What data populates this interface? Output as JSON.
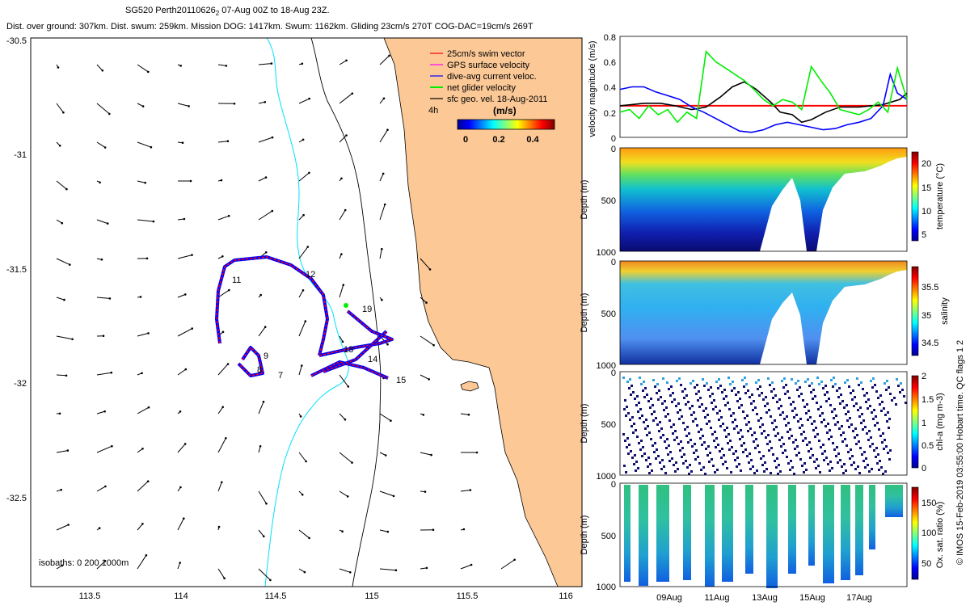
{
  "header": {
    "title_main": "SG520 Perth20110626",
    "title_sub": "2",
    "title_rest": " 07-Aug 00Z to 18-Aug 23Z.",
    "stats": "Dist. over ground: 307km. Dist. swum: 259km. Mission DOG: 1417km. Swum: 1162km. Gliding 23cm/s 270T COG-DAC=19cm/s 269T"
  },
  "colors": {
    "land": "#fbc896",
    "isobath_shallow": "#00e0ff",
    "isobath_deep": "#000000",
    "swim_vector": "#ff0000",
    "gps_velocity": "#ff00ff",
    "dac": "#0000ff",
    "net_velocity": "#00ee00",
    "sfc_geo": "#000000"
  },
  "map": {
    "xticks": [
      "113.5",
      "114",
      "114.5",
      "115",
      "115.5",
      "116"
    ],
    "yticks": [
      "-30.5",
      "-31",
      "-31.5",
      "-32",
      "-32.5"
    ],
    "legend": [
      {
        "label": "25cm/s swim vector",
        "color": "#ff0000"
      },
      {
        "label": "GPS surface velocity",
        "color": "#ff00ff"
      },
      {
        "label": "dive-avg current veloc.",
        "color": "#0000ff"
      },
      {
        "label": "net glider velocity",
        "color": "#00ee00"
      },
      {
        "label": "sfc geo. vel. 18-Aug-2011",
        "color": "#000000"
      }
    ],
    "legend_extra": "4h",
    "colorbar_title": "(m/s)",
    "colorbar_ticks": [
      "0",
      "0.2",
      "0.4"
    ],
    "track_labels": [
      "11",
      "12",
      "19",
      "13",
      "14",
      "15",
      "9",
      "8",
      "7"
    ],
    "isobath_note": "isobaths: 0   200  1000m"
  },
  "chart_data": [
    {
      "type": "line",
      "title": "",
      "ylabel": "velocity magnitude (m/s)",
      "ylim": [
        0,
        0.8
      ],
      "yticks": [
        "0",
        "0.2",
        "0.4",
        "0.6",
        "0.8"
      ],
      "xlim_days": [
        7,
        19
      ],
      "series": [
        {
          "color": "#ff0000",
          "x": [
            7.0,
            10.4,
            11.4,
            12.3,
            13.4,
            14.6,
            15.0,
            18.0,
            19.0
          ],
          "y": [
            0.25,
            0.25,
            0.25,
            0.25,
            0.25,
            0.25,
            0.25,
            0.25,
            0.25
          ]
        },
        {
          "color": "#000000",
          "x": [
            7.0,
            7.5,
            8.0,
            8.7,
            9.3,
            10.0,
            10.6,
            11.2,
            11.7,
            12.2,
            12.7,
            13.3,
            13.7,
            14.2,
            14.6,
            15.0,
            15.6,
            16.2,
            17.0,
            18.0,
            18.7,
            19.0
          ],
          "y": [
            0.25,
            0.26,
            0.27,
            0.27,
            0.25,
            0.22,
            0.24,
            0.32,
            0.4,
            0.44,
            0.38,
            0.28,
            0.2,
            0.18,
            0.12,
            0.14,
            0.2,
            0.24,
            0.24,
            0.26,
            0.3,
            0.35
          ]
        },
        {
          "color": "#0000ff",
          "x": [
            7.0,
            7.5,
            8.0,
            8.5,
            9.0,
            9.5,
            10.0,
            10.5,
            11.0,
            11.5,
            12.0,
            12.5,
            13.0,
            13.5,
            14.0,
            14.5,
            15.0,
            15.5,
            16.0,
            16.5,
            17.0,
            17.5,
            18.0,
            18.3,
            18.6,
            19.0
          ],
          "y": [
            0.38,
            0.4,
            0.4,
            0.36,
            0.33,
            0.3,
            0.24,
            0.2,
            0.15,
            0.1,
            0.05,
            0.04,
            0.06,
            0.1,
            0.12,
            0.1,
            0.08,
            0.06,
            0.07,
            0.1,
            0.12,
            0.15,
            0.25,
            0.5,
            0.35,
            0.3
          ]
        },
        {
          "color": "#00ee00",
          "x": [
            7.0,
            7.4,
            7.8,
            8.2,
            8.6,
            9.0,
            9.4,
            9.8,
            10.2,
            10.6,
            11.0,
            11.4,
            11.8,
            12.2,
            12.6,
            13.0,
            13.4,
            13.8,
            14.2,
            14.6,
            15.0,
            15.4,
            15.8,
            16.2,
            16.6,
            17.0,
            17.4,
            17.8,
            18.2,
            18.6,
            19.0
          ],
          "y": [
            0.2,
            0.22,
            0.15,
            0.25,
            0.18,
            0.22,
            0.12,
            0.2,
            0.15,
            0.68,
            0.6,
            0.55,
            0.5,
            0.45,
            0.38,
            0.3,
            0.25,
            0.3,
            0.28,
            0.22,
            0.56,
            0.45,
            0.35,
            0.22,
            0.2,
            0.18,
            0.22,
            0.28,
            0.2,
            0.55,
            0.3
          ]
        }
      ]
    },
    {
      "type": "heatmap",
      "ylabel": "Depth (m)",
      "yticks": [
        "0",
        "500",
        "1000"
      ],
      "clabel": "temperature (°C)",
      "cticks": [
        "20",
        "15",
        "10",
        "5"
      ],
      "colormap": "jet"
    },
    {
      "type": "heatmap",
      "ylabel": "Depth (m)",
      "yticks": [
        "0",
        "500",
        "1000"
      ],
      "clabel": "salinity",
      "cticks": [
        "35.5",
        "35",
        "34.5"
      ],
      "colormap": "jet"
    },
    {
      "type": "heatmap",
      "ylabel": "Depth (m)",
      "yticks": [
        "0",
        "500",
        "1000"
      ],
      "clabel": "chl-a (mg m-3)",
      "cticks": [
        "2",
        "1.5",
        "1",
        "0.5",
        "0"
      ],
      "colormap": "jet"
    },
    {
      "type": "heatmap",
      "ylabel": "Depth (m)",
      "yticks": [
        "0",
        "500",
        "1000"
      ],
      "clabel": "Ox. sat. ratio (%)",
      "cticks": [
        "150",
        "100",
        "50"
      ],
      "colormap": "jet",
      "xticks": [
        "09Aug",
        "11Aug",
        "13Aug",
        "15Aug",
        "17Aug"
      ]
    }
  ],
  "credit": "© IMOS 15-Feb-2019 03:55:00 Hobart time. QC flags 1  2"
}
